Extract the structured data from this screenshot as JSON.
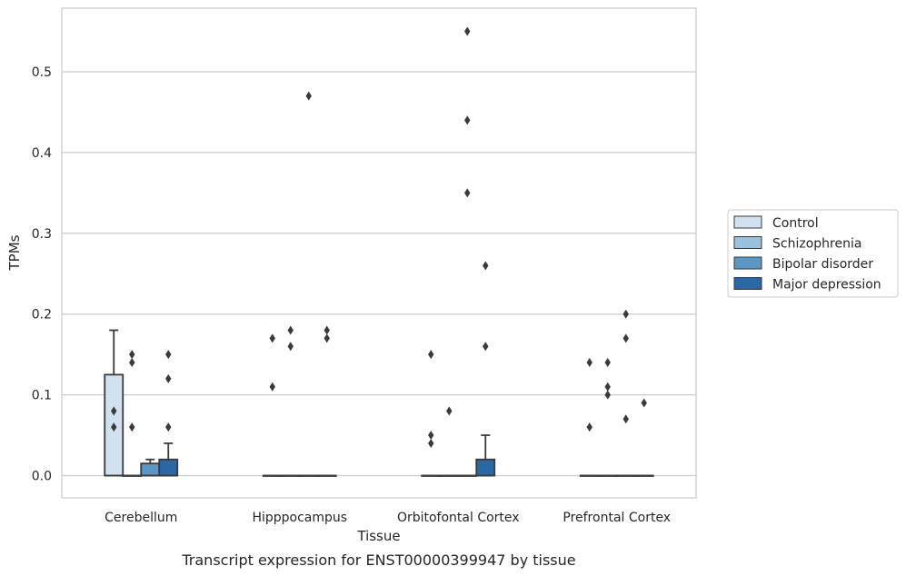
{
  "chart_data": {
    "type": "boxplot",
    "xlabel": "Tissue",
    "ylabel": "TPMs",
    "caption": "Transcript expression for ENST00000399947 by tissue",
    "ylim": [
      -0.028,
      0.58
    ],
    "yticks": [
      0.0,
      0.1,
      0.2,
      0.3,
      0.4,
      0.5
    ],
    "ytick_labels": [
      "0.0",
      "0.1",
      "0.2",
      "0.3",
      "0.4",
      "0.5"
    ],
    "grid": true,
    "legend_position": "right",
    "categories": [
      "Cerebellum",
      "Hipppocampus",
      "Orbitofontal Cortex",
      "Prefrontal Cortex"
    ],
    "series": [
      {
        "name": "Control",
        "color": "#d1e1f0",
        "boxes": [
          {
            "q1": 0.0,
            "median": 0.0,
            "q3": 0.125,
            "whisker_low": 0.0,
            "whisker_high": 0.18,
            "outliers": [
              0.08,
              0.06
            ]
          },
          {
            "q1": 0.0,
            "median": 0.0,
            "q3": 0.0,
            "whisker_low": 0.0,
            "whisker_high": 0.0,
            "outliers": [
              0.17,
              0.11
            ]
          },
          {
            "q1": 0.0,
            "median": 0.0,
            "q3": 0.0,
            "whisker_low": 0.0,
            "whisker_high": 0.0,
            "outliers": [
              0.15,
              0.05,
              0.04
            ]
          },
          {
            "q1": 0.0,
            "median": 0.0,
            "q3": 0.0,
            "whisker_low": 0.0,
            "whisker_high": 0.0,
            "outliers": [
              0.14,
              0.06
            ]
          }
        ]
      },
      {
        "name": "Schizophrenia",
        "color": "#9ac2de",
        "boxes": [
          {
            "q1": 0.0,
            "median": 0.0,
            "q3": 0.0,
            "whisker_low": 0.0,
            "whisker_high": 0.0,
            "outliers": [
              0.15,
              0.14,
              0.06
            ]
          },
          {
            "q1": 0.0,
            "median": 0.0,
            "q3": 0.0,
            "whisker_low": 0.0,
            "whisker_high": 0.0,
            "outliers": [
              0.18,
              0.16
            ]
          },
          {
            "q1": 0.0,
            "median": 0.0,
            "q3": 0.0,
            "whisker_low": 0.0,
            "whisker_high": 0.0,
            "outliers": [
              0.08
            ]
          },
          {
            "q1": 0.0,
            "median": 0.0,
            "q3": 0.0,
            "whisker_low": 0.0,
            "whisker_high": 0.0,
            "outliers": [
              0.14,
              0.11,
              0.1
            ]
          }
        ]
      },
      {
        "name": "Bipolar disorder",
        "color": "#5a97c5",
        "boxes": [
          {
            "q1": 0.0,
            "median": 0.0,
            "q3": 0.015,
            "whisker_low": 0.0,
            "whisker_high": 0.02,
            "outliers": []
          },
          {
            "q1": 0.0,
            "median": 0.0,
            "q3": 0.0,
            "whisker_low": 0.0,
            "whisker_high": 0.0,
            "outliers": [
              0.47
            ]
          },
          {
            "q1": 0.0,
            "median": 0.0,
            "q3": 0.0,
            "whisker_low": 0.0,
            "whisker_high": 0.0,
            "outliers": [
              0.55,
              0.44,
              0.35
            ]
          },
          {
            "q1": 0.0,
            "median": 0.0,
            "q3": 0.0,
            "whisker_low": 0.0,
            "whisker_high": 0.0,
            "outliers": [
              0.2,
              0.17,
              0.07
            ]
          }
        ]
      },
      {
        "name": "Major depression",
        "color": "#2a67a6",
        "boxes": [
          {
            "q1": 0.0,
            "median": 0.0,
            "q3": 0.02,
            "whisker_low": 0.0,
            "whisker_high": 0.04,
            "outliers": [
              0.15,
              0.12,
              0.06
            ]
          },
          {
            "q1": 0.0,
            "median": 0.0,
            "q3": 0.0,
            "whisker_low": 0.0,
            "whisker_high": 0.0,
            "outliers": [
              0.18,
              0.17
            ]
          },
          {
            "q1": 0.0,
            "median": 0.0,
            "q3": 0.02,
            "whisker_low": 0.0,
            "whisker_high": 0.05,
            "outliers": [
              0.26,
              0.16
            ]
          },
          {
            "q1": 0.0,
            "median": 0.0,
            "q3": 0.0,
            "whisker_low": 0.0,
            "whisker_high": 0.0,
            "outliers": [
              0.09
            ]
          }
        ]
      }
    ]
  }
}
